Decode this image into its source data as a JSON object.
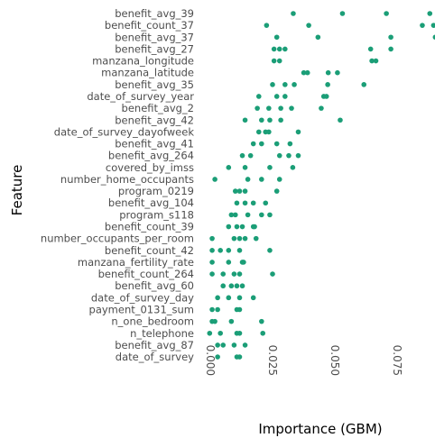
{
  "chart_data": {
    "type": "scatter",
    "xlabel": "Importance (GBM)",
    "ylabel": "Feature",
    "xlim": [
      -0.003,
      0.091
    ],
    "xticks": [
      0.0,
      0.025,
      0.05,
      0.075
    ],
    "xtick_labels": [
      "0.000",
      "0.025",
      "0.050",
      "0.075"
    ],
    "grid": false,
    "point_color": "#1b9e77",
    "features": [
      {
        "name": "benefit_avg_39",
        "values": [
          0.0335,
          0.0532,
          0.0708,
          0.0882
        ]
      },
      {
        "name": "benefit_count_37",
        "values": [
          0.0228,
          0.0397,
          0.0852,
          0.0897
        ]
      },
      {
        "name": "benefit_avg_37",
        "values": [
          0.0269,
          0.0434,
          0.0726,
          0.0904
        ]
      },
      {
        "name": "benefit_avg_27",
        "values": [
          0.0258,
          0.028,
          0.0302,
          0.0645,
          0.0726
        ]
      },
      {
        "name": "manzana_longitude",
        "values": [
          0.0258,
          0.028,
          0.065,
          0.0666
        ]
      },
      {
        "name": "manzana_latitude",
        "values": [
          0.0377,
          0.0392,
          0.0475,
          0.0512
        ]
      },
      {
        "name": "benefit_avg_35",
        "values": [
          0.0252,
          0.0302,
          0.0339,
          0.0473,
          0.0618
        ]
      },
      {
        "name": "date_of_survey_year",
        "values": [
          0.0197,
          0.0269,
          0.0302,
          0.0457,
          0.0468
        ]
      },
      {
        "name": "benefit_avg_2",
        "values": [
          0.0191,
          0.0237,
          0.0285,
          0.0328,
          0.0447
        ]
      },
      {
        "name": "benefit_avg_42",
        "values": [
          0.0142,
          0.0208,
          0.0241,
          0.0285,
          0.0523
        ]
      },
      {
        "name": "date_of_survey_dayofweek",
        "values": [
          0.0197,
          0.0224,
          0.0237,
          0.0355
        ]
      },
      {
        "name": "benefit_avg_41",
        "values": [
          0.0175,
          0.0208,
          0.0269,
          0.0322
        ]
      },
      {
        "name": "benefit_avg_264",
        "values": [
          0.0131,
          0.0164,
          0.028,
          0.0317,
          0.0355
        ]
      },
      {
        "name": "covered_by_imss",
        "values": [
          0.0076,
          0.0142,
          0.0241,
          0.0333
        ]
      },
      {
        "name": "number_home_occupants",
        "values": [
          0.0021,
          0.0153,
          0.0208,
          0.028
        ]
      },
      {
        "name": "program_0219",
        "values": [
          0.0103,
          0.012,
          0.0142,
          0.0269
        ]
      },
      {
        "name": "benefit_avg_104",
        "values": [
          0.0109,
          0.0142,
          0.0175,
          0.0224
        ]
      },
      {
        "name": "program_s118",
        "values": [
          0.0087,
          0.0103,
          0.0153,
          0.0208,
          0.0241
        ]
      },
      {
        "name": "benefit_count_39",
        "values": [
          0.0076,
          0.0109,
          0.0131,
          0.0175,
          0.018
        ]
      },
      {
        "name": "number_occupants_per_room",
        "values": [
          0.001,
          0.0098,
          0.012,
          0.0142,
          0.0186
        ]
      },
      {
        "name": "benefit_count_42",
        "values": [
          0.001,
          0.0043,
          0.0076,
          0.012,
          0.0241
        ]
      },
      {
        "name": "manzana_fertility_rate",
        "values": [
          0.001,
          0.0076,
          0.0131,
          0.0136
        ]
      },
      {
        "name": "benefit_count_264",
        "values": [
          0.001,
          0.0054,
          0.0098,
          0.012,
          0.0252
        ]
      },
      {
        "name": "benefit_avg_60",
        "values": [
          0.0054,
          0.0087,
          0.0109,
          0.0131
        ]
      },
      {
        "name": "date_of_survey_day",
        "values": [
          0.0032,
          0.0076,
          0.012,
          0.0175
        ]
      },
      {
        "name": "payment_0131_sum",
        "values": [
          0.001,
          0.0032,
          0.0109,
          0.012
        ]
      },
      {
        "name": "n_one_bedroom",
        "values": [
          0.001,
          0.0021,
          0.0087,
          0.0208
        ]
      },
      {
        "name": "n_telephone",
        "values": [
          0.0,
          0.0043,
          0.0109,
          0.012,
          0.0213
        ]
      },
      {
        "name": "benefit_avg_87",
        "values": [
          0.0032,
          0.0054,
          0.0098,
          0.0142
        ]
      },
      {
        "name": "date_of_survey",
        "values": [
          0.0032,
          0.0109,
          0.012
        ]
      }
    ]
  }
}
